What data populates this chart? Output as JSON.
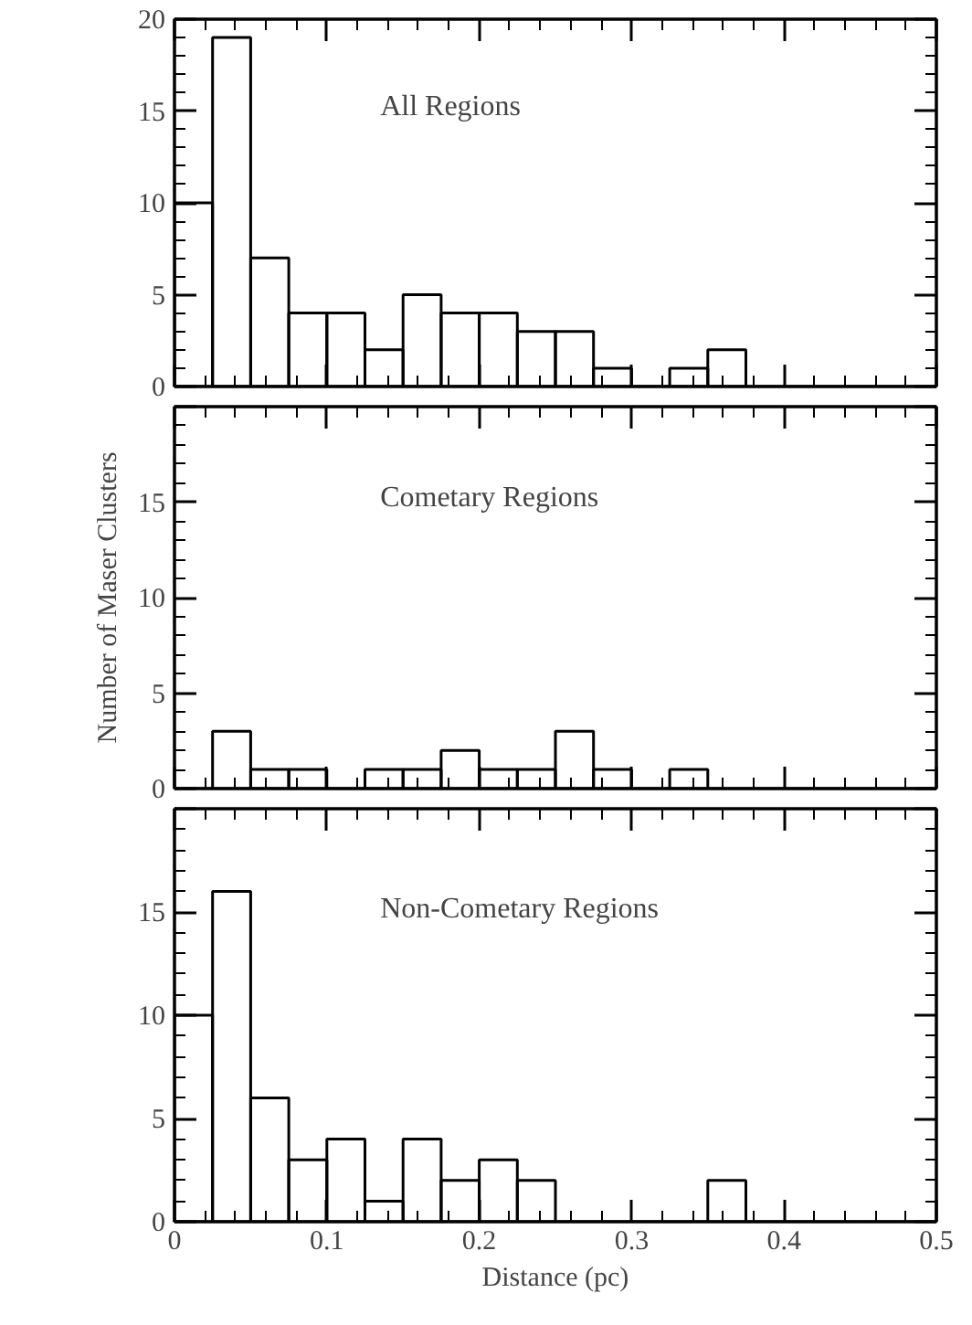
{
  "chart_data": [
    {
      "type": "histogram",
      "title": "All Regions",
      "bins": [
        0,
        0.025,
        0.05,
        0.075,
        0.1,
        0.125,
        0.15,
        0.175,
        0.2,
        0.225,
        0.25,
        0.275,
        0.3,
        0.325,
        0.35,
        0.375,
        0.4,
        0.425,
        0.45,
        0.475,
        0.5
      ],
      "values": [
        10,
        19,
        7,
        4,
        4,
        2,
        5,
        4,
        4,
        3,
        3,
        1,
        0,
        1,
        2,
        0,
        0,
        0,
        0,
        0
      ],
      "color": "#000000",
      "xlim": [
        0,
        0.5
      ],
      "ylim": [
        0,
        20
      ],
      "yticks": [
        0,
        5,
        10,
        15,
        20
      ],
      "tick_labels": "y"
    },
    {
      "type": "histogram",
      "title": "Cometary Regions",
      "ylabel": "Number of Maser Clusters",
      "bins": [
        0,
        0.025,
        0.05,
        0.075,
        0.1,
        0.125,
        0.15,
        0.175,
        0.2,
        0.225,
        0.25,
        0.275,
        0.3,
        0.325,
        0.35,
        0.375,
        0.4,
        0.425,
        0.45,
        0.475,
        0.5
      ],
      "values": [
        0,
        3,
        1,
        1,
        0,
        1,
        1,
        2,
        1,
        1,
        3,
        1,
        0,
        1,
        0,
        0,
        0,
        0,
        0,
        0
      ],
      "color": "#000000",
      "xlim": [
        0,
        0.5
      ],
      "ylim": [
        0,
        20
      ],
      "yticks": [
        0,
        5,
        10,
        15,
        {
          "value": 20,
          "label": null
        }
      ],
      "tick_labels": "y"
    },
    {
      "type": "histogram",
      "title": "Non-Cometary Regions",
      "xlabel": "Distance (pc)",
      "bins": [
        0,
        0.025,
        0.05,
        0.075,
        0.1,
        0.125,
        0.15,
        0.175,
        0.2,
        0.225,
        0.25,
        0.275,
        0.3,
        0.325,
        0.35,
        0.375,
        0.4,
        0.425,
        0.45,
        0.475,
        0.5
      ],
      "values": [
        10,
        16,
        6,
        3,
        4,
        1,
        4,
        2,
        3,
        2,
        0,
        0,
        0,
        0,
        2,
        0,
        0,
        0,
        0,
        0
      ],
      "color": "#000000",
      "xlim": [
        0,
        0.5
      ],
      "ylim": [
        0,
        20
      ],
      "xticks": [
        0,
        0.1,
        0.2,
        0.3,
        0.4,
        0.5
      ],
      "yticks": [
        0,
        5,
        10,
        15,
        {
          "value": 20,
          "label": null
        }
      ]
    }
  ]
}
